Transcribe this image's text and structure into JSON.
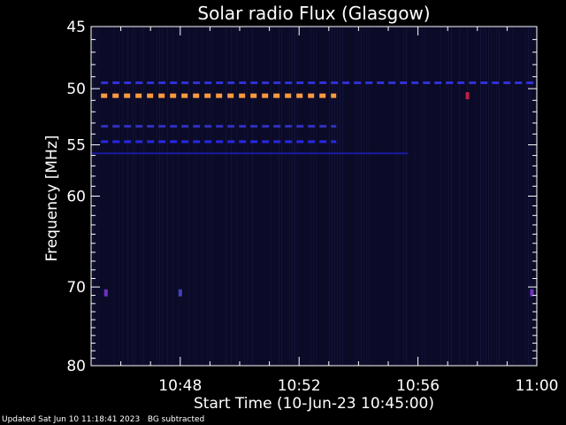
{
  "chart_data": {
    "type": "heatmap",
    "title": "Solar radio Flux (Glasgow)",
    "ylabel": "Frequency [MHz]",
    "xlabel": "Start Time (10-Jun-23 10:45:00)",
    "ylim": [
      45,
      80
    ],
    "y_scale": "log",
    "y_inverted": true,
    "y_ticks": [
      45,
      50,
      55,
      60,
      70,
      80
    ],
    "x_range": [
      "10:45:00",
      "11:00:00"
    ],
    "x_ticks": [
      "10:48",
      "10:52",
      "10:56",
      "11:00"
    ],
    "background": "#0b0b28",
    "features": [
      {
        "kind": "dashed-line",
        "freq_mhz": 50.6,
        "start": "10:45:20",
        "end": "10:53:15",
        "color": "#ff9a40"
      },
      {
        "kind": "dashed-line",
        "freq_mhz": 49.5,
        "start": "10:45:20",
        "end": "11:00:00",
        "color": "#3030d8"
      },
      {
        "kind": "dashed-line",
        "freq_mhz": 53.3,
        "start": "10:45:20",
        "end": "10:53:15",
        "color": "#3030c0"
      },
      {
        "kind": "dashed-line",
        "freq_mhz": 54.7,
        "start": "10:45:20",
        "end": "10:53:15",
        "color": "#2828e8"
      },
      {
        "kind": "solid-line",
        "freq_mhz": 55.8,
        "start": "10:45:00",
        "end": "10:55:40",
        "color": "#1a1aa0"
      },
      {
        "kind": "spot",
        "freq_mhz": 70.7,
        "time": "10:45:30",
        "color": "#7030c0"
      },
      {
        "kind": "spot",
        "freq_mhz": 70.7,
        "time": "10:48:00",
        "color": "#4040c0"
      },
      {
        "kind": "spot",
        "freq_mhz": 70.7,
        "time": "10:59:50",
        "color": "#7030c0"
      },
      {
        "kind": "spot",
        "freq_mhz": 50.6,
        "time": "10:57:40",
        "color": "#c02040"
      }
    ]
  },
  "footer": {
    "updated": "Updated Sat Jun 10 11:18:41 2023",
    "note": "BG subtracted"
  }
}
